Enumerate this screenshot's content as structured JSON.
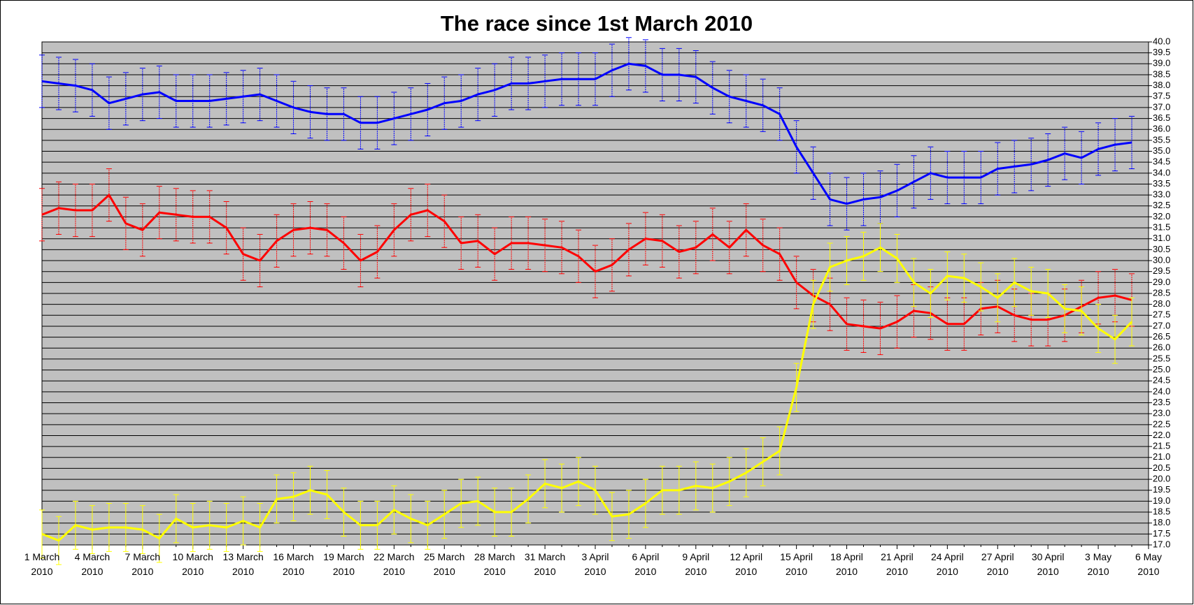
{
  "chart_data": {
    "type": "line",
    "title": "The race since 1st March 2010",
    "categories": [
      "1 March 2010",
      null,
      null,
      "4 March 2010",
      null,
      null,
      "7 March 2010",
      null,
      null,
      "10 March 2010",
      null,
      null,
      "13 March 2010",
      null,
      null,
      "16 March 2010",
      null,
      null,
      "19 March 2010",
      null,
      null,
      "22 March 2010",
      null,
      null,
      "25 March 2010",
      null,
      null,
      "28 March 2010",
      null,
      null,
      "31 March 2010",
      null,
      null,
      "3 April 2010",
      null,
      null,
      "6 April 2010",
      null,
      null,
      "9 April 2010",
      null,
      null,
      "12 April 2010",
      null,
      null,
      "15 April 2010",
      null,
      null,
      "18 April 2010",
      null,
      null,
      "21 April 2010",
      null,
      null,
      "24 April 2010",
      null,
      null,
      "27 April 2010",
      null,
      null,
      "30 April 2010",
      null,
      null,
      "3 May 2010",
      null,
      null,
      "6 May 2010"
    ],
    "series": [
      {
        "color": "#0000ff",
        "error": 1.2,
        "values": [
          38.2,
          38.1,
          38.0,
          37.8,
          37.2,
          37.4,
          37.6,
          37.7,
          37.3,
          37.3,
          37.3,
          37.4,
          37.5,
          37.6,
          37.3,
          37.0,
          36.8,
          36.7,
          36.7,
          36.3,
          36.3,
          36.5,
          36.7,
          36.9,
          37.2,
          37.3,
          37.6,
          37.8,
          38.1,
          38.1,
          38.2,
          38.3,
          38.3,
          38.3,
          38.7,
          39.0,
          38.9,
          38.5,
          38.5,
          38.4,
          37.9,
          37.5,
          37.3,
          37.1,
          36.7,
          35.2,
          34.0,
          32.8,
          32.6,
          32.8,
          32.9,
          33.2,
          33.6,
          34.0,
          33.8,
          33.8,
          33.8,
          34.2,
          34.3,
          34.4,
          34.6,
          34.9,
          34.7,
          35.1,
          35.3,
          35.4,
          null
        ]
      },
      {
        "color": "#ff0000",
        "error": 1.2,
        "values": [
          32.1,
          32.4,
          32.3,
          32.3,
          33.0,
          31.7,
          31.4,
          32.2,
          32.1,
          32.0,
          32.0,
          31.5,
          30.3,
          30.0,
          30.9,
          31.4,
          31.5,
          31.4,
          30.8,
          30.0,
          30.4,
          31.4,
          32.1,
          32.3,
          31.8,
          30.8,
          30.9,
          30.3,
          30.8,
          30.8,
          30.7,
          30.6,
          30.2,
          29.5,
          29.8,
          30.5,
          31.0,
          30.9,
          30.4,
          30.6,
          31.2,
          30.6,
          31.4,
          30.7,
          30.3,
          29.0,
          28.4,
          28.0,
          27.1,
          27.0,
          26.9,
          27.2,
          27.7,
          27.6,
          27.1,
          27.1,
          27.8,
          27.9,
          27.5,
          27.3,
          27.3,
          27.5,
          27.9,
          28.3,
          28.4,
          28.2,
          null
        ]
      },
      {
        "color": "#ffff00",
        "error": 1.1,
        "values": [
          17.5,
          17.2,
          17.9,
          17.7,
          17.8,
          17.8,
          17.7,
          17.3,
          18.2,
          17.8,
          17.9,
          17.8,
          18.1,
          17.8,
          19.1,
          19.2,
          19.5,
          19.3,
          18.5,
          17.9,
          17.9,
          18.6,
          18.2,
          17.9,
          18.4,
          18.9,
          19.0,
          18.5,
          18.5,
          19.1,
          19.8,
          19.6,
          19.9,
          19.5,
          18.3,
          18.4,
          18.9,
          19.5,
          19.5,
          19.7,
          19.6,
          19.9,
          20.3,
          20.8,
          21.3,
          24.2,
          28.0,
          29.7,
          30.0,
          30.2,
          30.6,
          30.1,
          29.0,
          28.5,
          29.3,
          29.2,
          28.8,
          28.3,
          29.0,
          28.6,
          28.5,
          27.8,
          27.7,
          26.9,
          26.4,
          27.2,
          null
        ]
      }
    ],
    "ylim": [
      17,
      40
    ],
    "yticks": [
      {
        "value": 17,
        "label": "17.0"
      },
      {
        "value": 17.5,
        "label": "17.5"
      },
      {
        "value": 18,
        "label": "18.0"
      },
      {
        "value": 18.5,
        "label": "18.5"
      },
      {
        "value": 19,
        "label": "19.0"
      },
      {
        "value": 19.5,
        "label": "19.5"
      },
      {
        "value": 20,
        "label": "20.0"
      },
      {
        "value": 20.5,
        "label": "20.5"
      },
      {
        "value": 21,
        "label": "21.0"
      },
      {
        "value": 21.5,
        "label": "21.5"
      },
      {
        "value": 22,
        "label": "22.0"
      },
      {
        "value": 22.5,
        "label": "22.5"
      },
      {
        "value": 23,
        "label": "23.0"
      },
      {
        "value": 23.5,
        "label": "23.5"
      },
      {
        "value": 24,
        "label": "24.0"
      },
      {
        "value": 24.5,
        "label": "24.5"
      },
      {
        "value": 25,
        "label": "25.0"
      },
      {
        "value": 25.5,
        "label": "25.5"
      },
      {
        "value": 26,
        "label": "26.0"
      },
      {
        "value": 26.5,
        "label": "26.5"
      },
      {
        "value": 27,
        "label": "27.0"
      },
      {
        "value": 27.5,
        "label": "27.5"
      },
      {
        "value": 28,
        "label": "28.0"
      },
      {
        "value": 28.5,
        "label": "28.5"
      },
      {
        "value": 29,
        "label": "29.0"
      },
      {
        "value": 29.5,
        "label": "29.5"
      },
      {
        "value": 30,
        "label": "30.0"
      },
      {
        "value": 30.5,
        "label": "30.5"
      },
      {
        "value": 31,
        "label": "31.0"
      },
      {
        "value": 31.5,
        "label": "31.5"
      },
      {
        "value": 32,
        "label": "32.0"
      },
      {
        "value": 32.5,
        "label": "32.5"
      },
      {
        "value": 33,
        "label": "33.0"
      },
      {
        "value": 33.5,
        "label": "33.5"
      },
      {
        "value": 34,
        "label": "34.0"
      },
      {
        "value": 34.5,
        "label": "34.5"
      },
      {
        "value": 35,
        "label": "35.0"
      },
      {
        "value": 35.5,
        "label": "35.5"
      },
      {
        "value": 36,
        "label": "36.0"
      },
      {
        "value": 36.5,
        "label": "36.5"
      },
      {
        "value": 37,
        "label": "37.0"
      },
      {
        "value": 37.5,
        "label": "37.5"
      },
      {
        "value": 38,
        "label": "38.0"
      },
      {
        "value": 38.5,
        "label": "38.5"
      },
      {
        "value": 39,
        "label": "39.0"
      },
      {
        "value": 39.5,
        "label": "39.5"
      },
      {
        "value": 40,
        "label": "40.0"
      }
    ],
    "yaxis_side": "right",
    "grid": true,
    "plot_background": "#c0c0c0"
  }
}
